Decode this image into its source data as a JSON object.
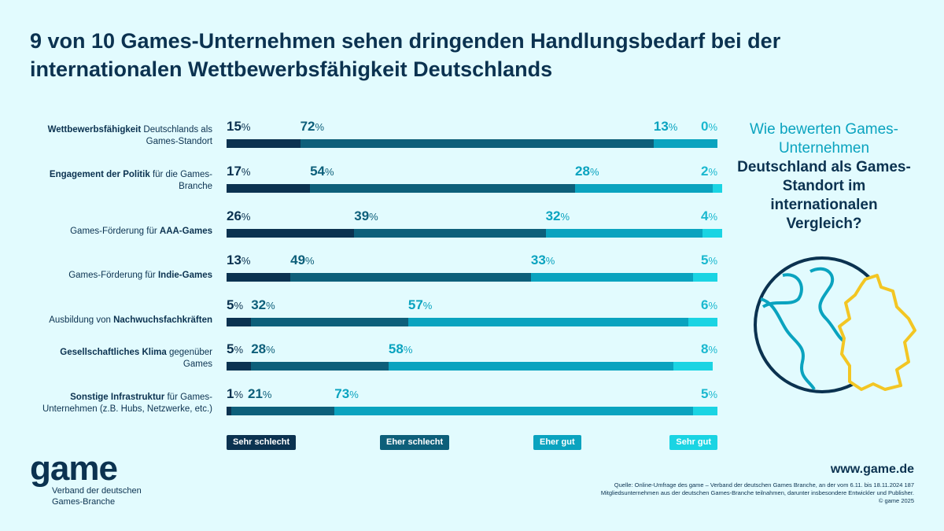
{
  "chart_data": {
    "type": "bar",
    "stacked": true,
    "orientation": "horizontal",
    "title": "9 von 10 Games-Unternehmen sehen dringenden Handlungsbedarf bei der internationalen Wettbewerbsfähigkeit Deutschlands",
    "categories": [
      {
        "normal_before": "",
        "bold": "Wettbewerbsfähigkeit",
        "normal_after": "Deutschlands als Games-Standort"
      },
      {
        "normal_before": "",
        "bold": "Engagement der Politik",
        "normal_after": "für die Games-Branche"
      },
      {
        "normal_before": "Games-Förderung für",
        "bold": "AAA-Games",
        "normal_after": ""
      },
      {
        "normal_before": "Games-Förderung für",
        "bold": "Indie-Games",
        "normal_after": ""
      },
      {
        "normal_before": "Ausbildung von",
        "bold": "Nachwuchsfachkräften",
        "normal_after": ""
      },
      {
        "normal_before": "",
        "bold": "Gesellschaftliches Klima",
        "normal_after": "gegenüber Games"
      },
      {
        "normal_before": "",
        "bold": "Sonstige Infrastruktur",
        "normal_after": "für Games-Unternehmen (z.B. Hubs, Netzwerke, etc.)"
      }
    ],
    "series": [
      {
        "name": "Sehr schlecht",
        "color": "#0b3250",
        "values": [
          15,
          17,
          26,
          13,
          5,
          5,
          1
        ]
      },
      {
        "name": "Eher schlecht",
        "color": "#0d5f7a",
        "values": [
          72,
          54,
          39,
          49,
          32,
          28,
          21
        ]
      },
      {
        "name": "Eher gut",
        "color": "#0aa3bf",
        "values": [
          13,
          28,
          32,
          33,
          57,
          58,
          73
        ]
      },
      {
        "name": "Sehr gut",
        "color": "#1ad4e3",
        "values": [
          0,
          2,
          4,
          5,
          6,
          8,
          5
        ]
      }
    ],
    "unit": "%",
    "legend": "bottom"
  },
  "question": {
    "pre": "Wie bewerten Games-Unternehmen",
    "bold": "Deutschland als Games-Standort im internationalen",
    "post": "Vergleich?"
  },
  "logo": {
    "word": "game",
    "sub1": "Verband der deutschen",
    "sub2": "Games-Branche"
  },
  "url": "www.game.de",
  "source": "Quelle: Online-Umfrage des game – Verband der deutschen Games Branche, an der vom 6.11. bis 18.11.2024 187 Mitgliedsunternehmen aus der deutschen Games-Branche teilnahmen, darunter insbesondere Entwickler und Publisher. © game 2025"
}
